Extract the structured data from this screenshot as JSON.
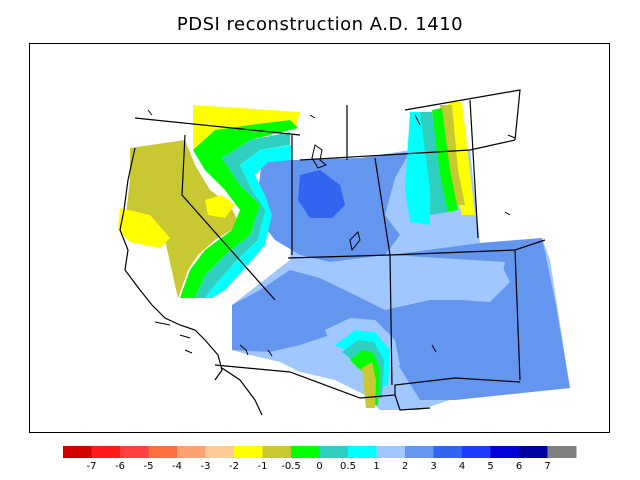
{
  "title": "PDSI reconstruction A.D. 1410",
  "legend": {
    "colors": [
      "#d40000",
      "#ff1a1a",
      "#ff4040",
      "#ff7040",
      "#ffa070",
      "#ffcc99",
      "#ffff00",
      "#c8c832",
      "#00ff00",
      "#30d0c0",
      "#00ffff",
      "#a0c8ff",
      "#6496f0",
      "#3264f0",
      "#1e3cff",
      "#0000d8",
      "#0000a0",
      "#808080"
    ],
    "ticks": [
      "-7",
      "-6",
      "-5",
      "-4",
      "-3",
      "-2",
      "-1",
      "-0.5",
      "0",
      "0.5",
      "1",
      "2",
      "3",
      "4",
      "5",
      "6",
      "7"
    ]
  },
  "palette": {
    "yellow": "#ffff00",
    "olive": "#c8c832",
    "green": "#00ff00",
    "teal": "#30d0c0",
    "cyan": "#00ffff",
    "lightblue": "#a0c8ff",
    "midblue": "#6496f0",
    "blue": "#3264f0"
  }
}
